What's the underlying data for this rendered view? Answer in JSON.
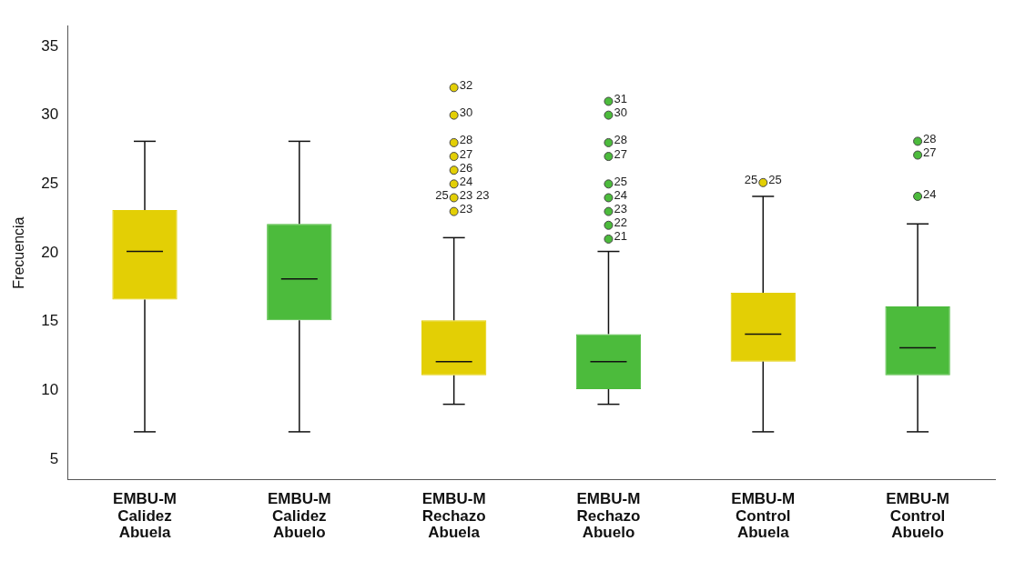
{
  "chart_data": {
    "type": "box",
    "ylabel": "Frecuencia",
    "categories": [
      "EMBU-M Calidez Abuela",
      "EMBU-M Calidez Abuelo",
      "EMBU-M Rechazo Abuela",
      "EMBU-M Rechazo Abuelo",
      "EMBU-M Control Abuela",
      "EMBU-M Control Abuelo"
    ],
    "colors": [
      "#e3cf05",
      "#4cbb3c",
      "#e3cf05",
      "#4cbb3c",
      "#e3cf05",
      "#4cbb3c"
    ],
    "boxes": [
      {
        "low": 7,
        "q1": 16.6,
        "median": 20.1,
        "q3": 23.1,
        "high": 28.1
      },
      {
        "low": 7,
        "q1": 15.1,
        "median": 18.1,
        "q3": 22.1,
        "high": 28.1
      },
      {
        "low": 9,
        "q1": 11.1,
        "median": 12.1,
        "q3": 15.1,
        "high": 21.1,
        "outliers": [
          23,
          24,
          25,
          26,
          27,
          28,
          30,
          32
        ]
      },
      {
        "low": 9,
        "q1": 10.1,
        "median": 12.1,
        "q3": 14.1,
        "high": 20.1,
        "outliers": [
          21,
          22,
          23,
          24,
          25,
          27,
          28,
          30,
          31
        ]
      },
      {
        "low": 7,
        "q1": 12.1,
        "median": 14.1,
        "q3": 17.1,
        "high": 24.1,
        "outliers": [
          25.1
        ]
      },
      {
        "low": 7,
        "q1": 11.1,
        "median": 13.1,
        "q3": 16.1,
        "high": 22.1,
        "outliers": [
          24.1,
          27.1,
          28.1
        ]
      }
    ],
    "marker": "circle",
    "ylim": [
      3.5,
      36.5
    ],
    "yticks": [
      5,
      10,
      15,
      20,
      25,
      30,
      35
    ],
    "grid": false,
    "annotations": [
      "23",
      "23",
      "25",
      "23",
      "24",
      "26",
      "27",
      "28",
      "30",
      "32",
      "21",
      "22",
      "23",
      "24",
      "25",
      "27",
      "28",
      "30",
      "31",
      "25",
      "25",
      "24",
      "27",
      "28"
    ]
  }
}
